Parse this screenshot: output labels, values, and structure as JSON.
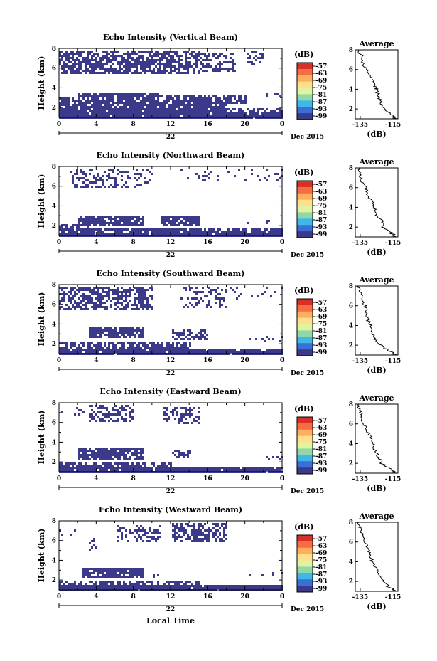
{
  "figure": {
    "xlabel": "Local Time",
    "date_label": "22",
    "month_label": "Dec 2015",
    "colorbar_unit": "(dB)",
    "colorbar_ticks": [
      "-57",
      "-63",
      "-69",
      "-75",
      "-81",
      "-87",
      "-93",
      "-99"
    ],
    "colorbar_colors": [
      "#d73027",
      "#f46d43",
      "#fdae61",
      "#fee08b",
      "#e0f3a0",
      "#90d8a8",
      "#3fb8e8",
      "#3b6fd6",
      "#3b3a8a"
    ],
    "panel_title_average": "Average",
    "avg_xticks": [
      "-135",
      "-115"
    ],
    "avg_xlabel": "(dB)",
    "ylabel": "Height (km)",
    "yticks": [
      "2",
      "4",
      "6",
      "8"
    ],
    "xticks": [
      "0",
      "4",
      "8",
      "12",
      "16",
      "20",
      "0"
    ],
    "fill_color": "#3b3a8a"
  },
  "chart_data": [
    {
      "type": "heatmap",
      "title": "Echo Intensity (Vertical Beam)",
      "x_range": [
        0,
        24
      ],
      "y_range": [
        1,
        8
      ],
      "profile": {
        "x": [
          -113,
          -116,
          -121,
          -122,
          -124,
          -125,
          -126,
          -128,
          -130,
          -133,
          -134,
          -136
        ],
        "y": [
          1.0,
          1.5,
          2.0,
          2.6,
          3.3,
          4.0,
          4.3,
          5.0,
          5.8,
          6.5,
          7.3,
          8.0
        ]
      }
    },
    {
      "type": "heatmap",
      "title": "Echo Intensity (Northward Beam)",
      "x_range": [
        0,
        24
      ],
      "y_range": [
        1,
        8
      ],
      "profile": {
        "x": [
          -113,
          -117,
          -122,
          -121,
          -125,
          -126,
          -128,
          -130,
          -132,
          -134,
          -135,
          -136
        ],
        "y": [
          1.0,
          1.5,
          2.0,
          2.6,
          3.2,
          3.8,
          4.5,
          5.2,
          6.0,
          6.7,
          7.4,
          8.0
        ]
      }
    },
    {
      "type": "heatmap",
      "title": "Echo Intensity (Southward Beam)",
      "x_range": [
        0,
        24
      ],
      "y_range": [
        1,
        8
      ],
      "profile": {
        "x": [
          -113,
          -117,
          -121,
          -126,
          -127,
          -128,
          -130,
          -131,
          -132,
          -134,
          -135,
          -136
        ],
        "y": [
          1.0,
          1.4,
          1.8,
          2.4,
          3.0,
          3.8,
          4.5,
          5.3,
          6.0,
          6.7,
          7.4,
          8.0
        ]
      }
    },
    {
      "type": "heatmap",
      "title": "Echo Intensity (Eastward Beam)",
      "x_range": [
        0,
        24
      ],
      "y_range": [
        1,
        8
      ],
      "profile": {
        "x": [
          -113,
          -117,
          -122,
          -124,
          -126,
          -127,
          -129,
          -131,
          -133,
          -134,
          -135,
          -136
        ],
        "y": [
          1.0,
          1.5,
          2.0,
          2.7,
          3.3,
          4.0,
          4.7,
          5.4,
          6.1,
          6.7,
          7.4,
          8.0
        ]
      }
    },
    {
      "type": "heatmap",
      "title": "Echo Intensity (Westward Beam)",
      "x_range": [
        0,
        24
      ],
      "y_range": [
        1,
        8
      ],
      "profile": {
        "x": [
          -113,
          -118,
          -121,
          -124,
          -126,
          -128,
          -129,
          -131,
          -133,
          -134,
          -135,
          -136
        ],
        "y": [
          1.0,
          1.5,
          2.1,
          2.8,
          3.4,
          4.1,
          4.8,
          5.5,
          6.2,
          6.8,
          7.4,
          8.0
        ]
      }
    }
  ]
}
